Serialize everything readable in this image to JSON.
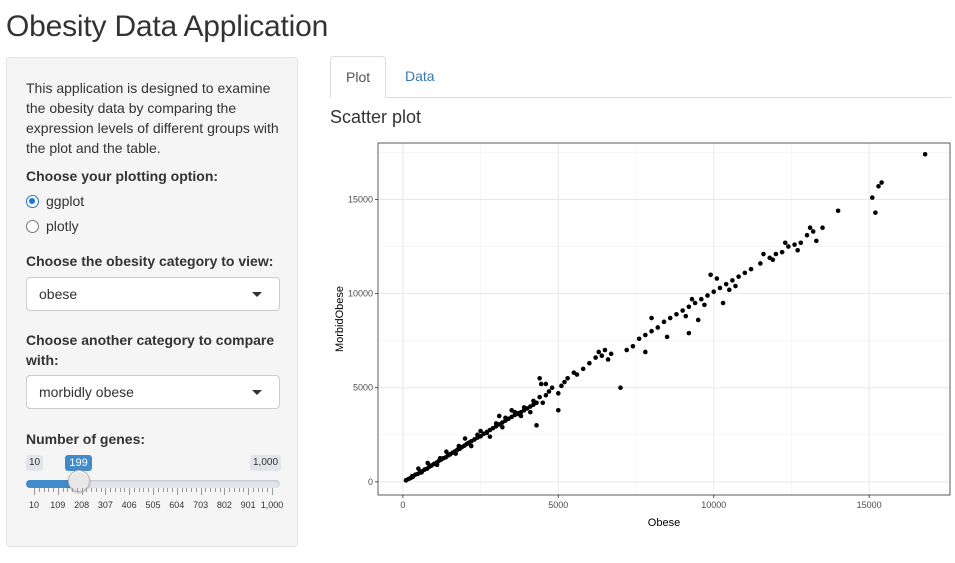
{
  "page": {
    "title": "Obesity Data Application"
  },
  "sidebar": {
    "description": "This application is designed to examine the obesity data by comparing the expression levels of different groups with the plot and the table.",
    "plot_option": {
      "label": "Choose your plotting option:",
      "options": [
        {
          "label": "ggplot",
          "checked": true
        },
        {
          "label": "plotly",
          "checked": false
        }
      ]
    },
    "category_select": {
      "label": "Choose the obesity category to view:",
      "value": "obese"
    },
    "compare_select": {
      "label": "Choose another category to compare with:",
      "value": "morbidly obese"
    },
    "genes_slider": {
      "label": "Number of genes:",
      "min": 10,
      "max": 1000,
      "value": 199,
      "min_label": "10",
      "max_label": "1,000",
      "value_label": "199",
      "tick_labels": [
        "10",
        "109",
        "208",
        "307",
        "406",
        "505",
        "604",
        "703",
        "802",
        "901",
        "1,000"
      ],
      "accent_color": "#428bca"
    }
  },
  "tabs": [
    {
      "label": "Plot",
      "active": true
    },
    {
      "label": "Data",
      "active": false
    }
  ],
  "main": {
    "section_title": "Scatter plot"
  },
  "chart_data": {
    "type": "scatter",
    "title": "",
    "xlabel": "Obese",
    "ylabel": "MorbidObese",
    "xlim": [
      -800,
      17600
    ],
    "ylim": [
      -700,
      18000
    ],
    "xticks": [
      0,
      5000,
      10000,
      15000
    ],
    "xtick_labels": [
      "0",
      "5000",
      "10000",
      "15000"
    ],
    "yticks": [
      0,
      5000,
      10000,
      15000
    ],
    "ytick_labels": [
      "0",
      "5000",
      "10000",
      "15000"
    ],
    "grid": true,
    "point_color": "#000000",
    "points": [
      [
        100,
        80
      ],
      [
        180,
        150
      ],
      [
        250,
        200
      ],
      [
        320,
        260
      ],
      [
        400,
        380
      ],
      [
        480,
        420
      ],
      [
        550,
        500
      ],
      [
        620,
        560
      ],
      [
        700,
        650
      ],
      [
        780,
        700
      ],
      [
        850,
        800
      ],
      [
        920,
        870
      ],
      [
        1000,
        950
      ],
      [
        1080,
        1020
      ],
      [
        1150,
        1100
      ],
      [
        1230,
        1180
      ],
      [
        1300,
        1250
      ],
      [
        1380,
        1300
      ],
      [
        1450,
        1400
      ],
      [
        1520,
        1460
      ],
      [
        1600,
        1550
      ],
      [
        1680,
        1620
      ],
      [
        1750,
        1700
      ],
      [
        1830,
        1760
      ],
      [
        1900,
        1850
      ],
      [
        1980,
        1920
      ],
      [
        2050,
        2000
      ],
      [
        2130,
        2080
      ],
      [
        2200,
        2150
      ],
      [
        2300,
        2250
      ],
      [
        2400,
        2350
      ],
      [
        2500,
        2420
      ],
      [
        2600,
        2550
      ],
      [
        2700,
        2650
      ],
      [
        2800,
        2750
      ],
      [
        2900,
        2850
      ],
      [
        3000,
        2950
      ],
      [
        3100,
        3050
      ],
      [
        3200,
        3150
      ],
      [
        3300,
        3250
      ],
      [
        3400,
        3350
      ],
      [
        3500,
        3450
      ],
      [
        3600,
        3550
      ],
      [
        3700,
        3650
      ],
      [
        3800,
        3700
      ],
      [
        3900,
        3800
      ],
      [
        4000,
        3900
      ],
      [
        4100,
        4000
      ],
      [
        4200,
        4100
      ],
      [
        4300,
        4200
      ],
      [
        300,
        300
      ],
      [
        600,
        500
      ],
      [
        900,
        850
      ],
      [
        1200,
        1250
      ],
      [
        1500,
        1450
      ],
      [
        1800,
        1900
      ],
      [
        2100,
        2050
      ],
      [
        2400,
        2500
      ],
      [
        2700,
        2600
      ],
      [
        3000,
        3100
      ],
      [
        3300,
        3400
      ],
      [
        3600,
        3700
      ],
      [
        3900,
        3950
      ],
      [
        4200,
        4300
      ],
      [
        500,
        700
      ],
      [
        800,
        1000
      ],
      [
        1100,
        900
      ],
      [
        1400,
        1600
      ],
      [
        1700,
        1500
      ],
      [
        2000,
        2300
      ],
      [
        2200,
        1900
      ],
      [
        2500,
        2700
      ],
      [
        2800,
        2400
      ],
      [
        3100,
        3500
      ],
      [
        3200,
        2900
      ],
      [
        3500,
        3800
      ],
      [
        3800,
        3500
      ],
      [
        4100,
        3700
      ],
      [
        4400,
        4500
      ],
      [
        4500,
        4200
      ],
      [
        4400,
        5500
      ],
      [
        4450,
        5200
      ],
      [
        4600,
        4600
      ],
      [
        4700,
        4800
      ],
      [
        4800,
        5000
      ],
      [
        5000,
        4700
      ],
      [
        5100,
        5100
      ],
      [
        5200,
        5300
      ],
      [
        5300,
        5500
      ],
      [
        5500,
        5800
      ],
      [
        5600,
        5700
      ],
      [
        5800,
        6000
      ],
      [
        6000,
        6300
      ],
      [
        6200,
        6600
      ],
      [
        6300,
        6900
      ],
      [
        6400,
        6700
      ],
      [
        6500,
        7000
      ],
      [
        6600,
        6500
      ],
      [
        6700,
        6800
      ],
      [
        7000,
        5000
      ],
      [
        7200,
        7000
      ],
      [
        7400,
        7200
      ],
      [
        7600,
        7600
      ],
      [
        7800,
        7800
      ],
      [
        8000,
        8000
      ],
      [
        8200,
        8200
      ],
      [
        8400,
        8500
      ],
      [
        8600,
        8700
      ],
      [
        8800,
        8900
      ],
      [
        9000,
        9100
      ],
      [
        9200,
        9300
      ],
      [
        9400,
        9500
      ],
      [
        9600,
        9700
      ],
      [
        9800,
        9900
      ],
      [
        10000,
        10100
      ],
      [
        10200,
        10300
      ],
      [
        10400,
        10500
      ],
      [
        10600,
        10700
      ],
      [
        10800,
        10900
      ],
      [
        11000,
        11100
      ],
      [
        8500,
        7700
      ],
      [
        9100,
        8800
      ],
      [
        9300,
        9700
      ],
      [
        9500,
        8600
      ],
      [
        9700,
        9400
      ],
      [
        9900,
        11000
      ],
      [
        10100,
        10800
      ],
      [
        10300,
        9500
      ],
      [
        10500,
        10200
      ],
      [
        10700,
        10400
      ],
      [
        11200,
        11300
      ],
      [
        11500,
        11600
      ],
      [
        11800,
        11900
      ],
      [
        12000,
        12100
      ],
      [
        12200,
        12200
      ],
      [
        12400,
        12500
      ],
      [
        12600,
        12600
      ],
      [
        12800,
        12700
      ],
      [
        13000,
        13100
      ],
      [
        13200,
        13300
      ],
      [
        11600,
        12100
      ],
      [
        11900,
        11800
      ],
      [
        12300,
        12700
      ],
      [
        12700,
        12300
      ],
      [
        13100,
        13500
      ],
      [
        13300,
        12800
      ],
      [
        13500,
        13500
      ],
      [
        14000,
        14400
      ],
      [
        15100,
        15100
      ],
      [
        15200,
        14300
      ],
      [
        15300,
        15700
      ],
      [
        15400,
        15900
      ],
      [
        16800,
        17400
      ],
      [
        4300,
        3000
      ],
      [
        4600,
        5200
      ],
      [
        5000,
        3800
      ],
      [
        3700,
        3600
      ],
      [
        8000,
        8700
      ],
      [
        9200,
        7900
      ],
      [
        7800,
        6900
      ]
    ]
  }
}
